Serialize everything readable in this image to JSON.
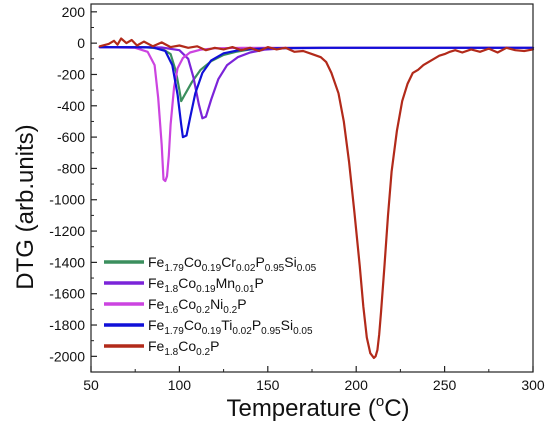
{
  "chart_data": {
    "type": "line",
    "xlabel": "Temperature (",
    "xlabel_super": "o",
    "xlabel_suffix": "C)",
    "ylabel": "DTG (arb.units)",
    "xlim": [
      50,
      300
    ],
    "ylim": [
      -2100,
      250
    ],
    "xticks": [
      50,
      100,
      150,
      200,
      250,
      300
    ],
    "yticks": [
      200,
      0,
      -200,
      -400,
      -600,
      -800,
      -1000,
      -1200,
      -1400,
      -1600,
      -1800,
      -2000
    ],
    "legend_position": "bottom-left",
    "series": [
      {
        "name": "Fe1.79Co0.19Cr0.02P0.95Si0.05",
        "legend_parts": [
          [
            "Fe",
            ""
          ],
          [
            "1.79",
            "sub"
          ],
          [
            "Co",
            ""
          ],
          [
            "0.19",
            "sub"
          ],
          [
            "Cr",
            ""
          ],
          [
            "0.02",
            "sub"
          ],
          [
            "P",
            ""
          ],
          [
            "0.95",
            "sub"
          ],
          [
            "Si",
            ""
          ],
          [
            "0.05",
            "sub"
          ]
        ],
        "color": "#3b8f5e",
        "x": [
          55,
          80,
          90,
          95,
          98,
          100,
          101,
          103,
          107,
          112,
          118,
          125,
          132,
          140,
          150,
          165,
          185,
          220,
          300
        ],
        "y": [
          -25,
          -26,
          -35,
          -70,
          -180,
          -300,
          -370,
          -330,
          -250,
          -170,
          -115,
          -75,
          -55,
          -40,
          -32,
          -30,
          -30,
          -30,
          -30
        ]
      },
      {
        "name": "Fe1.8Co0.19Mn0.01P",
        "legend_parts": [
          [
            "Fe",
            ""
          ],
          [
            "1.8",
            "sub"
          ],
          [
            "Co",
            ""
          ],
          [
            "0.19",
            "sub"
          ],
          [
            "Mn",
            ""
          ],
          [
            "0.01",
            "sub"
          ],
          [
            "P",
            ""
          ]
        ],
        "color": "#7b24d9",
        "x": [
          55,
          90,
          100,
          105,
          108,
          111,
          113,
          115,
          118,
          122,
          127,
          133,
          140,
          148,
          160,
          200,
          300
        ],
        "y": [
          -25,
          -28,
          -45,
          -100,
          -220,
          -390,
          -480,
          -470,
          -360,
          -230,
          -140,
          -90,
          -60,
          -42,
          -32,
          -30,
          -30
        ]
      },
      {
        "name": "Fe1.6Co0.2Ni0.2P",
        "legend_parts": [
          [
            "Fe",
            ""
          ],
          [
            "1.6",
            "sub"
          ],
          [
            "Co",
            ""
          ],
          [
            "0.2",
            "sub"
          ],
          [
            "Ni",
            ""
          ],
          [
            "0.2",
            "sub"
          ],
          [
            "P",
            ""
          ]
        ],
        "color": "#cc44e0",
        "x": [
          55,
          75,
          82,
          86,
          88,
          90,
          91,
          92,
          93,
          94,
          95,
          97,
          99,
          102,
          106,
          112,
          120,
          135,
          160,
          300
        ],
        "y": [
          -25,
          -30,
          -55,
          -140,
          -350,
          -650,
          -870,
          -880,
          -850,
          -720,
          -520,
          -280,
          -160,
          -95,
          -60,
          -42,
          -33,
          -30,
          -30,
          -30
        ]
      },
      {
        "name": "Fe1.79Co0.19Ti0.02P0.95Si0.05",
        "legend_parts": [
          [
            "Fe",
            ""
          ],
          [
            "1.79",
            "sub"
          ],
          [
            "Co",
            ""
          ],
          [
            "0.19",
            "sub"
          ],
          [
            "Ti",
            ""
          ],
          [
            "0.02",
            "sub"
          ],
          [
            "P",
            ""
          ],
          [
            "0.95",
            "sub"
          ],
          [
            "Si",
            ""
          ],
          [
            "0.05",
            "sub"
          ]
        ],
        "color": "#1010d8",
        "x": [
          55,
          85,
          92,
          96,
          99,
          101,
          102,
          104,
          106,
          109,
          113,
          118,
          125,
          135,
          150,
          180,
          300
        ],
        "y": [
          -25,
          -27,
          -50,
          -140,
          -330,
          -520,
          -600,
          -590,
          -480,
          -320,
          -190,
          -110,
          -65,
          -42,
          -33,
          -30,
          -30
        ]
      },
      {
        "name": "Fe1.8Co0.2P",
        "legend_parts": [
          [
            "Fe",
            ""
          ],
          [
            "1.8",
            "sub"
          ],
          [
            "Co",
            ""
          ],
          [
            "0.2",
            "sub"
          ],
          [
            "P",
            ""
          ]
        ],
        "color": "#b22a1a",
        "x": [
          55,
          60,
          63,
          65,
          67,
          70,
          73,
          76,
          80,
          85,
          90,
          95,
          100,
          105,
          110,
          115,
          120,
          125,
          130,
          135,
          140,
          145,
          150,
          155,
          160,
          165,
          170,
          175,
          180,
          183,
          186,
          190,
          193,
          196,
          199,
          202,
          204,
          206,
          208,
          210,
          211,
          212,
          213,
          214,
          216,
          218,
          220,
          223,
          226,
          229,
          232,
          235,
          238,
          241,
          244,
          247,
          250,
          253,
          256,
          260,
          265,
          270,
          275,
          280,
          285,
          290,
          295,
          300
        ],
        "y": [
          -20,
          -5,
          15,
          -10,
          30,
          0,
          20,
          -15,
          10,
          -20,
          5,
          -25,
          -15,
          -30,
          -20,
          -45,
          -30,
          -40,
          -25,
          -45,
          -30,
          -50,
          -25,
          -40,
          -30,
          -55,
          -50,
          -70,
          -90,
          -120,
          -190,
          -320,
          -500,
          -760,
          -1080,
          -1420,
          -1680,
          -1880,
          -1980,
          -2010,
          -2000,
          -1960,
          -1860,
          -1720,
          -1420,
          -1100,
          -820,
          -560,
          -370,
          -260,
          -190,
          -170,
          -140,
          -120,
          -100,
          -80,
          -70,
          -55,
          -45,
          -60,
          -40,
          -55,
          -35,
          -60,
          -30,
          -45,
          -50,
          -40
        ]
      }
    ]
  }
}
